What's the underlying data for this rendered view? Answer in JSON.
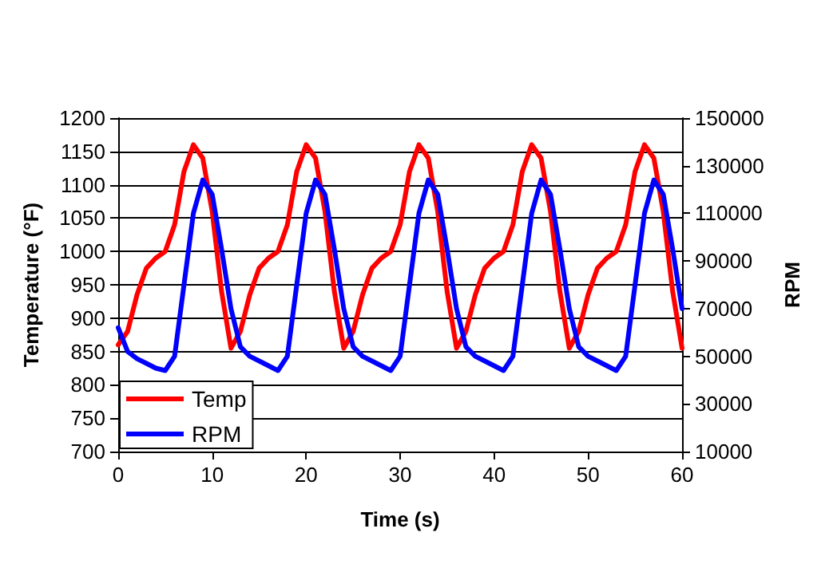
{
  "chart_data": {
    "type": "line",
    "xlabel": "Time (s)",
    "ylabel": "Temperature (°F)",
    "y2label": "RPM",
    "x": [
      0,
      1,
      2,
      3,
      4,
      5,
      6,
      7,
      8,
      9,
      10,
      11,
      12,
      13,
      14,
      15,
      16,
      17,
      18,
      19,
      20,
      21,
      22,
      23,
      24,
      25,
      26,
      27,
      28,
      29,
      30,
      31,
      32,
      33,
      34,
      35,
      36,
      37,
      38,
      39,
      40,
      41,
      42,
      43,
      44,
      45,
      46,
      47,
      48,
      49,
      50,
      51,
      52,
      53,
      54,
      55,
      56,
      57,
      58,
      59,
      60
    ],
    "series": [
      {
        "name": "Temp",
        "color": "#ff0000",
        "values": [
          860,
          880,
          935,
          975,
          990,
          1000,
          1040,
          1120,
          1160,
          1140,
          1060,
          940,
          855,
          880,
          935,
          975,
          990,
          1000,
          1040,
          1120,
          1160,
          1140,
          1060,
          940,
          855,
          880,
          935,
          975,
          990,
          1000,
          1040,
          1120,
          1160,
          1140,
          1060,
          940,
          855,
          880,
          935,
          975,
          990,
          1000,
          1040,
          1120,
          1160,
          1140,
          1060,
          940,
          855,
          880,
          935,
          975,
          990,
          1000,
          1040,
          1120,
          1160,
          1140,
          1060,
          940,
          855
        ]
      },
      {
        "name": "RPM",
        "color": "#0000ff",
        "axis": "y2",
        "values": [
          62000,
          52000,
          49000,
          47000,
          45000,
          44000,
          50000,
          80000,
          110000,
          124000,
          118000,
          95000,
          70000,
          54000,
          50000,
          48000,
          46000,
          44000,
          50000,
          80000,
          110000,
          124000,
          118000,
          95000,
          70000,
          54000,
          50000,
          48000,
          46000,
          44000,
          50000,
          80000,
          110000,
          124000,
          118000,
          95000,
          70000,
          54000,
          50000,
          48000,
          46000,
          44000,
          50000,
          80000,
          110000,
          124000,
          118000,
          95000,
          70000,
          54000,
          50000,
          48000,
          46000,
          44000,
          50000,
          80000,
          110000,
          124000,
          118000,
          95000,
          70000
        ]
      }
    ],
    "xlim": [
      0,
      60
    ],
    "xticks": [
      0,
      10,
      20,
      30,
      40,
      50,
      60
    ],
    "ylim": [
      700,
      1200
    ],
    "yticks": [
      700,
      750,
      800,
      850,
      900,
      950,
      1000,
      1050,
      1100,
      1150,
      1200
    ],
    "y2lim": [
      10000,
      150000
    ],
    "y2ticks": [
      10000,
      30000,
      50000,
      70000,
      90000,
      110000,
      130000,
      150000
    ],
    "grid": "y",
    "legend": "bottom left",
    "marker": "none",
    "line_style": "solid"
  }
}
